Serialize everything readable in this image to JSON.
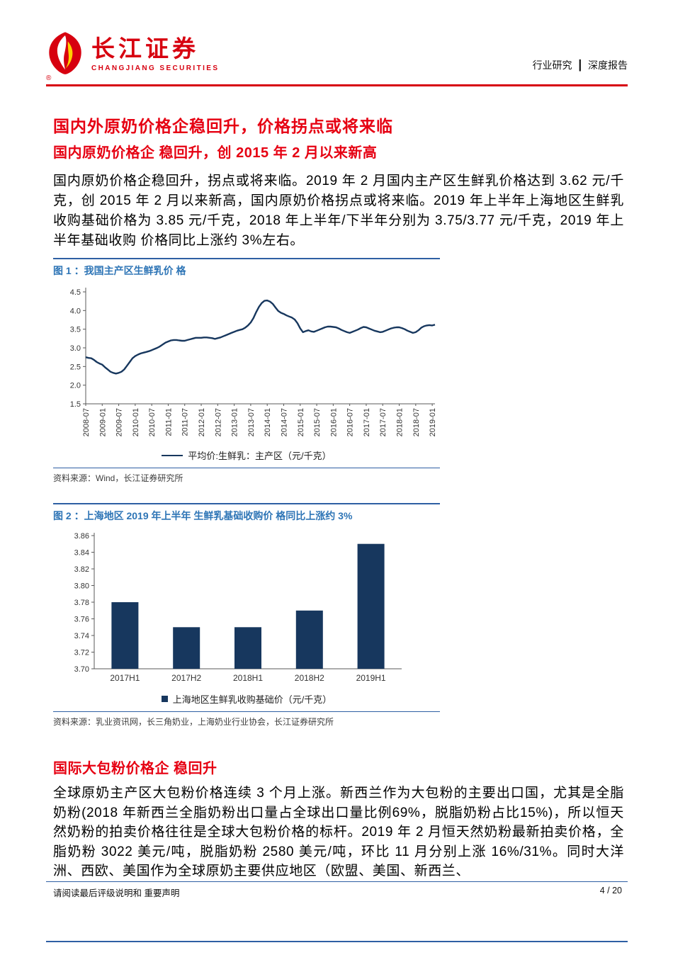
{
  "theme": {
    "brand_red": "#D7000F",
    "title_red": "#E60012",
    "caption_blue": "#2E75B6",
    "rule_blue": "#2E5FA3",
    "chart_navy": "#17375E"
  },
  "header": {
    "logo_cn": "长江证券",
    "logo_en": "CHANGJIANG SECURITIES",
    "reg": "®",
    "category": "行业研究",
    "separator": "┃",
    "report_type": "深度报告"
  },
  "content": {
    "main_title": "国内外原奶价格企稳回升，价格拐点或将来临",
    "section1_title": "国内原奶价格企 稳回升，创 2015 年 2 月以来新高",
    "para1": "国内原奶价格企稳回升，拐点或将来临。2019 年 2 月国内主产区生鲜乳价格达到 3.62 元/千克，创 2015 年 2 月以来新高，国内原奶价格拐点或将来临。2019 年上半年上海地区生鲜乳收购基础价格为 3.85 元/千克，2018 年上半年/下半年分别为 3.75/3.77 元/千克，2019 年上半年基础收购 价格同比上涨约 3%左右。",
    "section2_title": "国际大包粉价格企 稳回升",
    "para2": "全球原奶主产区大包粉价格连续 3 个月上涨。新西兰作为大包粉的主要出口国，尤其是全脂奶粉(2018 年新西兰全脂奶粉出口量占全球出口量比例69%，脱脂奶粉占比15%)，所以恒天然奶粉的拍卖价格往往是全球大包粉价格的标杆。2019 年 2 月恒天然奶粉最新拍卖价格，全脂奶粉 3022 美元/吨，脱脂奶粉 2580 美元/吨，环比 11 月分别上涨 16%/31%。同时大洋洲、西欧、美国作为全球原奶主要供应地区（欧盟、美国、新西兰、"
  },
  "figures": [
    {
      "caption": "图 1 ：我国主产区生鲜乳价 格",
      "source": "资料来源：Wind，长江证券研究所"
    },
    {
      "caption": "图 2 ：上海地区 2019 年上半年 生鲜乳基础收购价 格同比上涨约 3%",
      "source": "资料来源：乳业资讯网，长三角奶业，上海奶业行业协会，长江证券研究所"
    }
  ],
  "chart_data": [
    {
      "type": "line",
      "title": "我国主产区生鲜乳价格",
      "legend": [
        "平均价:生鲜乳：主产区（元/千克）"
      ],
      "line_color": "#17375E",
      "ylim": [
        1.5,
        4.5
      ],
      "ytick_step": 0.5,
      "ytick_decimals": 1,
      "x_unit": "month",
      "x_start": "2008-07",
      "x_end": "2019-02",
      "x_tick_every": 6,
      "x_tick_labels": [
        "2008-07",
        "2009-01",
        "2009-07",
        "2010-01",
        "2010-07",
        "2011-01",
        "2011-07",
        "2012-01",
        "2012-07",
        "2013-01",
        "2013-07",
        "2014-01",
        "2014-07",
        "2015-01",
        "2015-07",
        "2016-01",
        "2016-07",
        "2017-01",
        "2017-07",
        "2018-01",
        "2018-07",
        "2019-01"
      ],
      "values": [
        2.75,
        2.73,
        2.72,
        2.68,
        2.62,
        2.58,
        2.55,
        2.48,
        2.42,
        2.36,
        2.33,
        2.31,
        2.33,
        2.36,
        2.42,
        2.52,
        2.62,
        2.72,
        2.78,
        2.82,
        2.85,
        2.87,
        2.89,
        2.91,
        2.94,
        2.97,
        3.0,
        3.04,
        3.09,
        3.14,
        3.17,
        3.2,
        3.21,
        3.21,
        3.2,
        3.19,
        3.19,
        3.21,
        3.23,
        3.25,
        3.27,
        3.27,
        3.27,
        3.28,
        3.28,
        3.27,
        3.26,
        3.24,
        3.26,
        3.28,
        3.31,
        3.34,
        3.37,
        3.4,
        3.43,
        3.46,
        3.48,
        3.5,
        3.54,
        3.6,
        3.68,
        3.8,
        3.96,
        4.1,
        4.2,
        4.26,
        4.27,
        4.24,
        4.18,
        4.08,
        3.99,
        3.94,
        3.91,
        3.87,
        3.84,
        3.81,
        3.76,
        3.66,
        3.52,
        3.42,
        3.45,
        3.47,
        3.44,
        3.43,
        3.46,
        3.49,
        3.52,
        3.55,
        3.57,
        3.57,
        3.56,
        3.55,
        3.52,
        3.48,
        3.45,
        3.42,
        3.4,
        3.43,
        3.46,
        3.49,
        3.53,
        3.56,
        3.55,
        3.52,
        3.49,
        3.46,
        3.44,
        3.42,
        3.43,
        3.46,
        3.49,
        3.52,
        3.54,
        3.55,
        3.55,
        3.53,
        3.5,
        3.46,
        3.43,
        3.4,
        3.42,
        3.47,
        3.54,
        3.58,
        3.6,
        3.61,
        3.6,
        3.62
      ]
    },
    {
      "type": "bar",
      "title": "上海地区生鲜乳收购基础价",
      "legend": [
        "上海地区生鲜乳收购基础价（元/千克）"
      ],
      "bar_color": "#17375E",
      "ylim": [
        3.7,
        3.86
      ],
      "ytick_step": 0.02,
      "ytick_decimals": 2,
      "categories": [
        "2017H1",
        "2017H2",
        "2018H1",
        "2018H2",
        "2019H1"
      ],
      "values": [
        3.78,
        3.75,
        3.75,
        3.77,
        3.85
      ]
    }
  ],
  "footer": {
    "disclaimer": "请阅读最后评级说明和 重要声明",
    "page": "4 / 20"
  }
}
